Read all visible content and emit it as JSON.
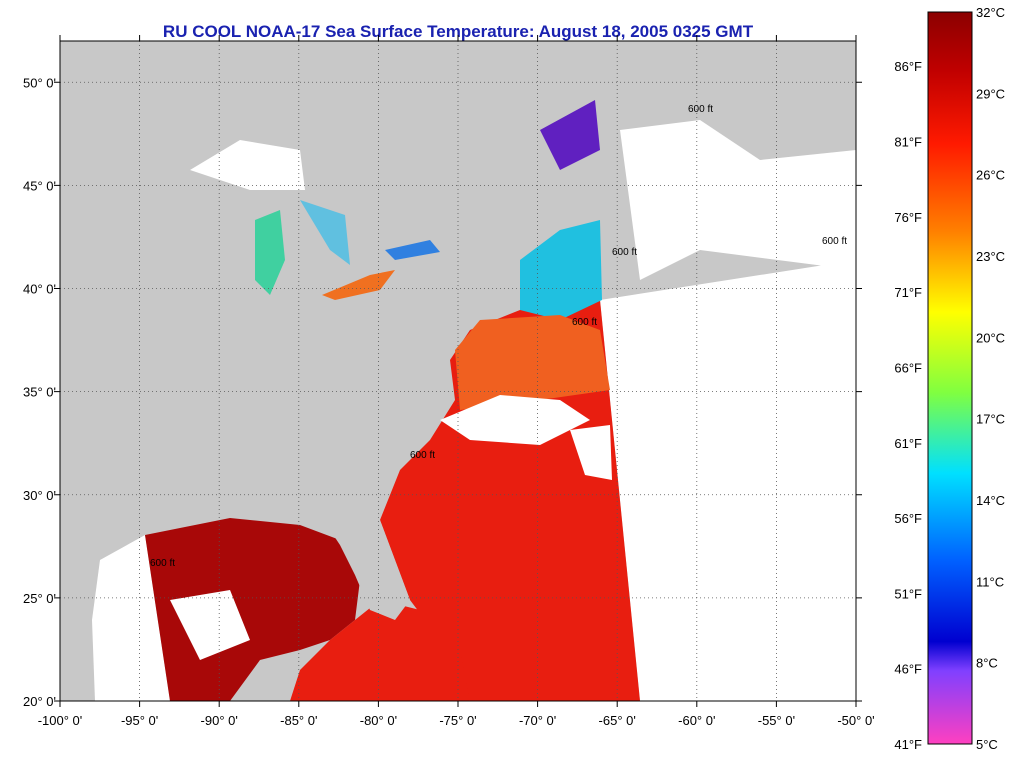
{
  "title": "RU COOL  NOAA-17  Sea Surface Temperature:  August 18, 2005 0325 GMT",
  "map": {
    "lon_range": [
      -100,
      -50
    ],
    "lat_range": [
      20,
      52
    ],
    "x_ticks": [
      "-100° 0'",
      "-95° 0'",
      "-90° 0'",
      "-85° 0'",
      "-80° 0'",
      "-75° 0'",
      "-70° 0'",
      "-65° 0'",
      "-60° 0'",
      "-55° 0'",
      "-50° 0'"
    ],
    "x_tick_values": [
      -100,
      -95,
      -90,
      -85,
      -80,
      -75,
      -70,
      -65,
      -60,
      -55,
      -50
    ],
    "y_ticks": [
      "20° 0'",
      "25° 0'",
      "30° 0'",
      "35° 0'",
      "40° 0'",
      "45° 0'",
      "50° 0'"
    ],
    "y_tick_values": [
      20,
      25,
      30,
      35,
      40,
      45,
      50
    ],
    "grid": true,
    "isobath_labels": [
      "600 ft",
      "600 ft",
      "600 ft",
      "600 ft",
      "600 ft",
      "600 ft"
    ],
    "colors": {
      "land": "#c8c8c8",
      "no_data": "#ffffff",
      "warm": "#e81e10",
      "hot": "#a80808"
    }
  },
  "colorbar": {
    "celsius_labels": [
      "32°C",
      "29°C",
      "26°C",
      "23°C",
      "20°C",
      "17°C",
      "14°C",
      "11°C",
      "8°C",
      "5°C"
    ],
    "fahrenheit_labels": [
      "86°F",
      "81°F",
      "76°F",
      "71°F",
      "66°F",
      "61°F",
      "56°F",
      "51°F",
      "46°F",
      "41°F"
    ],
    "celsius_range": [
      5,
      32
    ]
  }
}
